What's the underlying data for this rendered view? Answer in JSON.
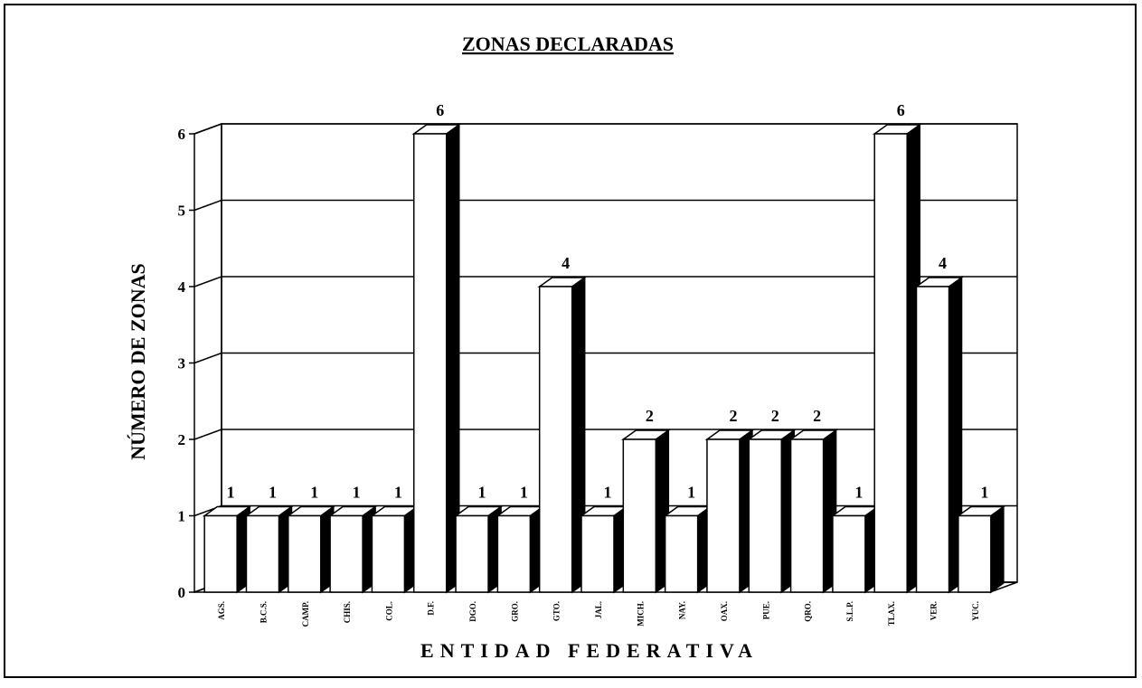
{
  "chart_data": {
    "type": "bar3d",
    "title": "ZONAS DECLARADAS",
    "x_label": "ENTIDAD FEDERATIVA",
    "y_label": "NÚMERO DE ZONAS",
    "categories": [
      "AGS.",
      "B.C.S.",
      "CAMP.",
      "CHIS.",
      "COL.",
      "D.F.",
      "DGO.",
      "GRO.",
      "GTO.",
      "JAL.",
      "MICH.",
      "NAY.",
      "OAX.",
      "PUE.",
      "QRO.",
      "S.L.P.",
      "TLAX.",
      "VER.",
      "YUC."
    ],
    "values": [
      1,
      1,
      1,
      1,
      1,
      6,
      1,
      1,
      4,
      1,
      2,
      1,
      2,
      2,
      2,
      1,
      6,
      4,
      1
    ],
    "ylim": [
      0,
      6
    ],
    "yticks": [
      0,
      1,
      2,
      3,
      4,
      5,
      6
    ],
    "grid": true,
    "color": "#ffffff"
  }
}
